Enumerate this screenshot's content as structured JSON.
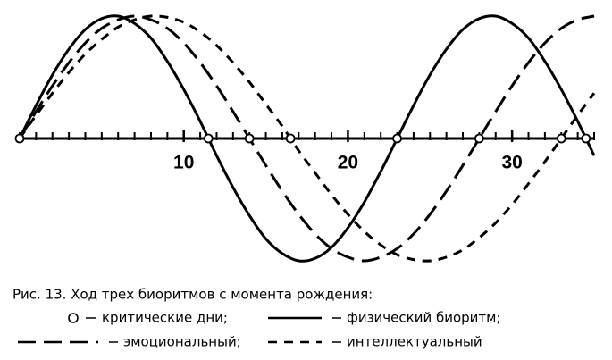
{
  "chart_data": {
    "type": "line",
    "caption": "Рис. 13. Ход трех биоритмов с момента рождения:",
    "legend_critical": "критические дни;",
    "x": [
      0,
      1,
      2,
      3,
      4,
      5,
      6,
      7,
      8,
      9,
      10,
      11,
      12,
      13,
      14,
      15,
      16,
      17,
      18,
      19,
      20,
      21,
      22,
      23,
      24,
      25,
      26,
      27,
      28,
      29,
      30,
      31,
      32,
      33,
      34,
      35
    ],
    "series": [
      {
        "name": "физический биоритм;",
        "color": "#000000",
        "style": "solid",
        "values": [
          0,
          0.27,
          0.52,
          0.73,
          0.89,
          0.98,
          1.0,
          0.94,
          0.82,
          0.63,
          0.4,
          0.14,
          -0.14,
          -0.4,
          -0.63,
          -0.82,
          -0.94,
          -1.0,
          -0.98,
          -0.89,
          -0.73,
          -0.52,
          -0.27,
          0,
          0.27,
          0.52,
          0.73,
          0.89,
          0.98,
          1.0,
          0.94,
          0.82,
          0.63,
          0.4,
          0.14,
          -0.14
        ]
      },
      {
        "name": "эмоциональный;",
        "color": "#000000",
        "style": "long-dash",
        "values": [
          0,
          0.22,
          0.43,
          0.62,
          0.78,
          0.9,
          0.97,
          1.0,
          0.97,
          0.9,
          0.78,
          0.62,
          0.43,
          0.22,
          0,
          -0.22,
          -0.43,
          -0.62,
          -0.78,
          -0.9,
          -0.97,
          -1.0,
          -0.97,
          -0.9,
          -0.78,
          -0.62,
          -0.43,
          -0.22,
          0,
          0.22,
          0.43,
          0.62,
          0.78,
          0.9,
          0.97,
          1.0
        ]
      },
      {
        "name": "интеллектуальный",
        "color": "#000000",
        "style": "dash",
        "values": [
          0,
          0.19,
          0.37,
          0.54,
          0.69,
          0.81,
          0.91,
          0.97,
          1.0,
          0.99,
          0.95,
          0.87,
          0.76,
          0.62,
          0.46,
          0.28,
          0.1,
          -0.1,
          -0.28,
          -0.46,
          -0.62,
          -0.76,
          -0.87,
          -0.95,
          -0.99,
          -1.0,
          -0.97,
          -0.91,
          -0.81,
          -0.69,
          -0.54,
          -0.37,
          -0.19,
          0,
          0.19,
          0.37
        ]
      }
    ],
    "critical_days": [
      0,
      11.5,
      14,
      16.5,
      23,
      28,
      33,
      34.5
    ],
    "xlim": [
      0,
      35
    ],
    "xticks": [
      10,
      20,
      30
    ],
    "ylim": [
      -1,
      1
    ]
  }
}
